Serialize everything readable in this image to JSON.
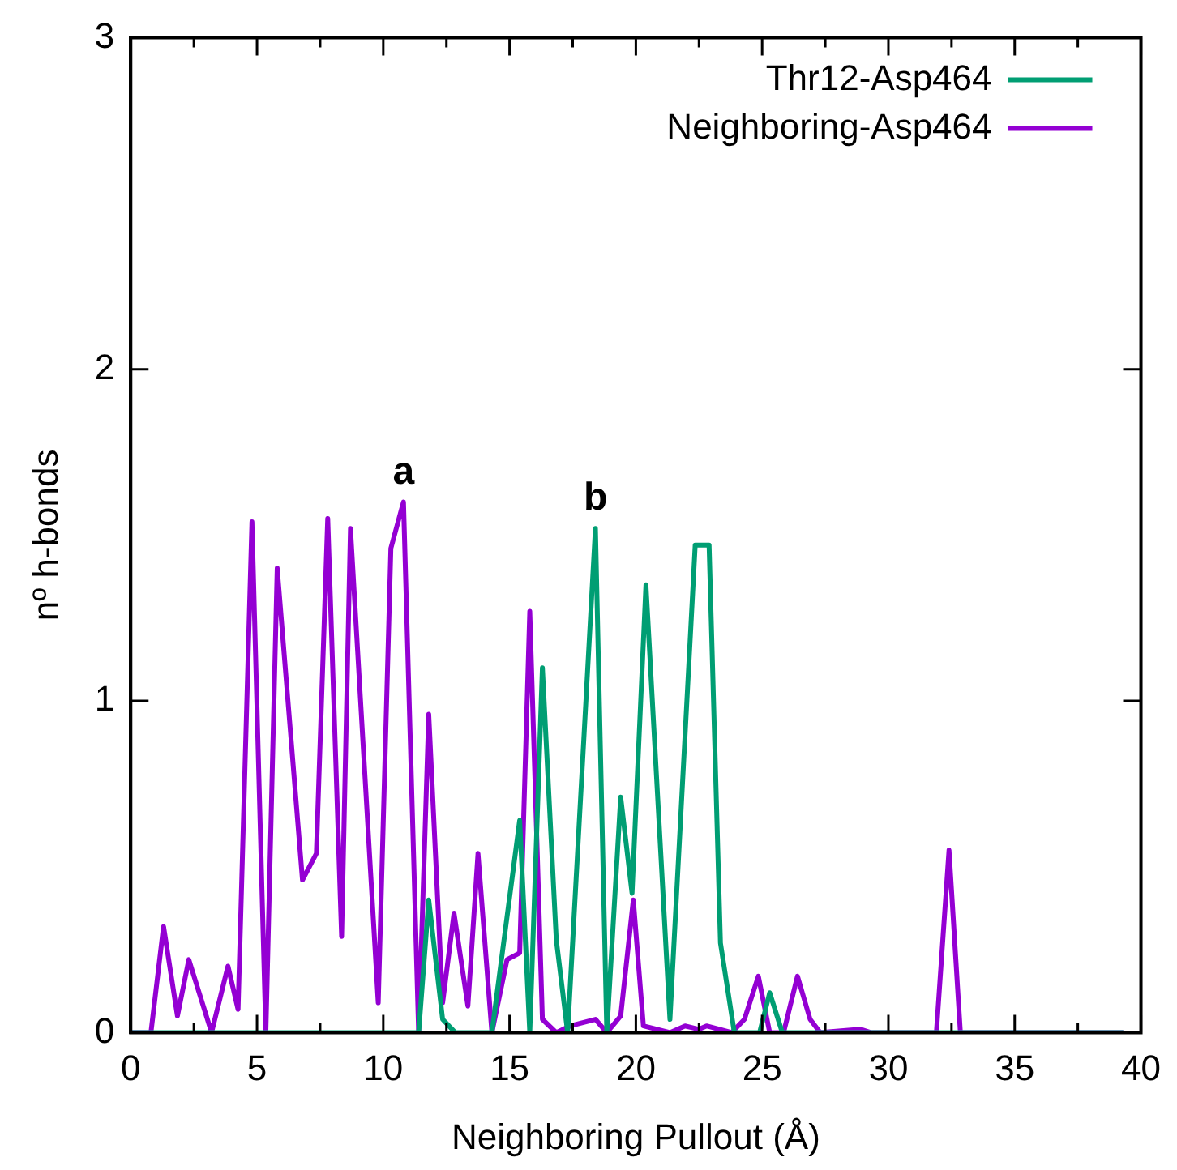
{
  "chart_data": {
    "type": "line",
    "xlabel": "Neighboring Pullout (Å)",
    "ylabel": "nº h-bonds",
    "xlim": [
      0,
      40
    ],
    "xticks": [
      0,
      {
        "value": 2.5,
        "label": null
      },
      5,
      {
        "value": 7.5,
        "label": null
      },
      10,
      {
        "value": 12.5,
        "label": null
      },
      15,
      {
        "value": 17.5,
        "label": null
      },
      20,
      {
        "value": 22.5,
        "label": null
      },
      25,
      {
        "value": 27.5,
        "label": null
      },
      30,
      {
        "value": 32.5,
        "label": null
      },
      35,
      {
        "value": 37.5,
        "label": null
      },
      40
    ],
    "ylim": [
      0,
      3
    ],
    "yticks": [
      0,
      1,
      2,
      3
    ],
    "grid": false,
    "legend": "top right",
    "marker": "none",
    "line_style": "solid",
    "annotations": [
      {
        "text": "a",
        "x": 10.8,
        "y": 1.6
      },
      {
        "text": "b",
        "x": 18.4,
        "y": 1.52
      }
    ],
    "series": [
      {
        "name": "Thr12-Asp464",
        "color": "#009e73",
        "x": [
          0,
          11.4,
          11.8,
          12.35,
          12.85,
          14.3,
          15.4,
          15.8,
          16.3,
          16.85,
          17.3,
          18.4,
          18.85,
          19.4,
          19.85,
          20.4,
          21.35,
          22.35,
          22.9,
          23.35,
          23.9,
          24.9,
          25.3,
          25.8,
          39.3
        ],
        "values": [
          0,
          0,
          0.4,
          0.04,
          0,
          0,
          0.64,
          0,
          1.1,
          0.28,
          0,
          1.52,
          0,
          0.71,
          0.42,
          1.35,
          0.04,
          1.47,
          1.47,
          0.27,
          0,
          0,
          0.12,
          0,
          0
        ]
      },
      {
        "name": "Neighboring-Asp464",
        "color": "#9400d3",
        "x": [
          0,
          0.8,
          1.3,
          1.85,
          2.3,
          3.2,
          3.85,
          4.25,
          4.8,
          5.35,
          5.8,
          6.8,
          7.35,
          7.8,
          8.35,
          8.7,
          9.8,
          10.3,
          10.8,
          11.4,
          11.8,
          12.35,
          12.8,
          13.35,
          13.75,
          14.3,
          14.9,
          15.4,
          15.8,
          16.3,
          16.85,
          17.4,
          18.4,
          18.85,
          19.4,
          19.9,
          20.3,
          21.35,
          21.95,
          22.5,
          22.8,
          23.8,
          24.3,
          24.85,
          25.3,
          25.85,
          26.4,
          26.9,
          27.3,
          28.9,
          29.3,
          31.9,
          32.4,
          32.85,
          39.3
        ],
        "values": [
          0,
          0,
          0.32,
          0.05,
          0.22,
          0,
          0.2,
          0.07,
          1.54,
          0,
          1.4,
          0.46,
          0.54,
          1.55,
          0.29,
          1.52,
          0.09,
          1.46,
          1.6,
          0,
          0.96,
          0.09,
          0.36,
          0.08,
          0.54,
          0,
          0.22,
          0.24,
          1.27,
          0.04,
          0,
          0.02,
          0.04,
          0,
          0.05,
          0.4,
          0.02,
          0,
          0.02,
          0.01,
          0.02,
          0,
          0.04,
          0.17,
          0,
          0,
          0.17,
          0.04,
          0,
          0.01,
          0,
          0,
          0.55,
          0,
          0
        ]
      }
    ]
  }
}
